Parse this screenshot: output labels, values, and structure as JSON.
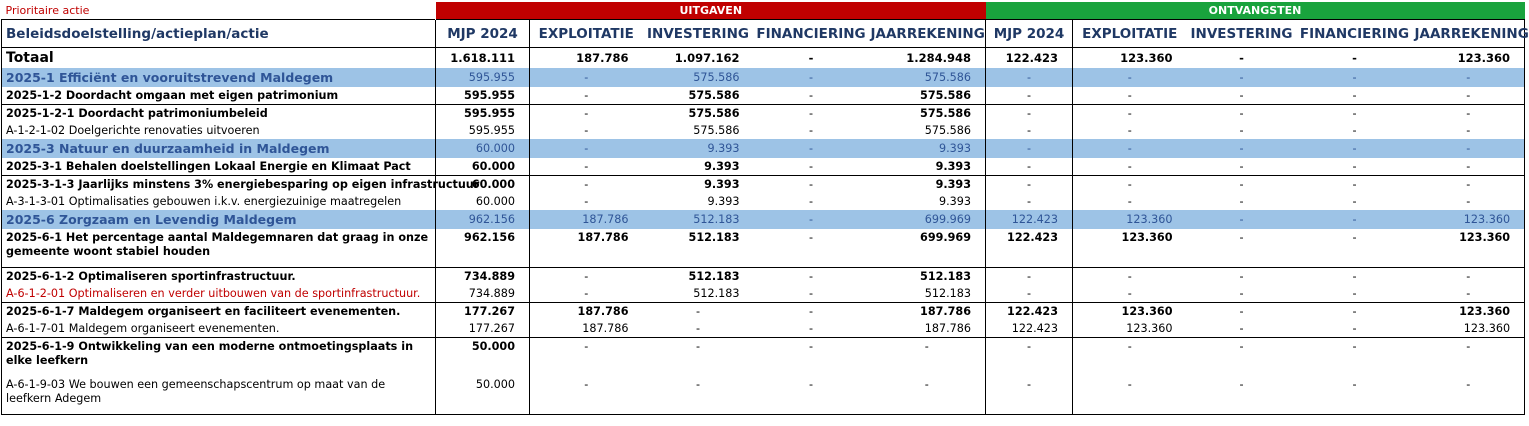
{
  "priority_label": "Prioritaire actie",
  "groups": {
    "uitgaven": "UITGAVEN",
    "ontvangsten": "ONTVANGSTEN"
  },
  "columns": {
    "label": "Beleidsdoelstelling/actieplan/actie",
    "u": [
      "MJP 2024",
      "EXPLOITATIE",
      "INVESTERING",
      "FINANCIERING",
      "JAARREKENING"
    ],
    "o": [
      "MJP 2024",
      "EXPLOITATIE",
      "INVESTERING",
      "FINANCIERING",
      "JAARREKENING"
    ]
  },
  "rows": [
    {
      "label": "Totaal",
      "v": [
        "1.618.111",
        "187.786",
        "1.097.162",
        "-",
        "1.284.948",
        "122.423",
        "123.360",
        "-",
        "-",
        "123.360"
      ]
    },
    {
      "label": "2025-1 Efficiënt en vooruitstrevend Maldegem",
      "v": [
        "595.955",
        "-",
        "575.586",
        "-",
        "575.586",
        "-",
        "-",
        "-",
        "-",
        "-"
      ]
    },
    {
      "label": "2025-1-2 Doordacht omgaan met eigen patrimonium",
      "v": [
        "595.955",
        "-",
        "575.586",
        "-",
        "575.586",
        "-",
        "-",
        "-",
        "-",
        "-"
      ]
    },
    {
      "label": "2025-1-2-1  Doordacht patrimoniumbeleid",
      "v": [
        "595.955",
        "-",
        "575.586",
        "-",
        "575.586",
        "-",
        "-",
        "-",
        "-",
        "-"
      ]
    },
    {
      "label": "A-1-2-1-02 Doelgerichte renovaties uitvoeren",
      "v": [
        "595.955",
        "-",
        "575.586",
        "-",
        "575.586",
        "-",
        "-",
        "-",
        "-",
        "-"
      ]
    },
    {
      "label": "2025-3 Natuur en duurzaamheid in Maldegem",
      "v": [
        "60.000",
        "-",
        "9.393",
        "-",
        "9.393",
        "-",
        "-",
        "-",
        "-",
        "-"
      ]
    },
    {
      "label": "2025-3-1 Behalen doelstellingen Lokaal Energie en Klimaat Pact",
      "v": [
        "60.000",
        "-",
        "9.393",
        "-",
        "9.393",
        "-",
        "-",
        "-",
        "-",
        "-"
      ]
    },
    {
      "label": "2025-3-1-3 Jaarlijks minstens 3% energiebesparing op eigen infrastructuur",
      "v": [
        "60.000",
        "-",
        "9.393",
        "-",
        "9.393",
        "-",
        "-",
        "-",
        "-",
        "-"
      ]
    },
    {
      "label": "A-3-1-3-01 Optimalisaties gebouwen i.k.v. energiezuinige maatregelen",
      "v": [
        "60.000",
        "-",
        "9.393",
        "-",
        "9.393",
        "-",
        "-",
        "-",
        "-",
        "-"
      ]
    },
    {
      "label": "2025-6 Zorgzaam en Levendig Maldegem",
      "v": [
        "962.156",
        "187.786",
        "512.183",
        "-",
        "699.969",
        "122.423",
        "123.360",
        "-",
        "-",
        "123.360"
      ]
    },
    {
      "label": "2025-6-1 Het percentage aantal Maldegemnaren dat graag in onze gemeente woont stabiel houden",
      "v": [
        "962.156",
        "187.786",
        "512.183",
        "-",
        "699.969",
        "122.423",
        "123.360",
        "-",
        "-",
        "123.360"
      ]
    },
    {
      "label": "2025-6-1-2 Optimaliseren sportinfrastructuur.",
      "v": [
        "734.889",
        "-",
        "512.183",
        "-",
        "512.183",
        "-",
        "-",
        "-",
        "-",
        "-"
      ]
    },
    {
      "label": "A-6-1-2-01 Optimaliseren en verder uitbouwen van de sportinfrastructuur.",
      "v": [
        "734.889",
        "-",
        "512.183",
        "-",
        "512.183",
        "-",
        "-",
        "-",
        "-",
        "-"
      ]
    },
    {
      "label": "2025-6-1-7 Maldegem organiseert en faciliteert evenementen.",
      "v": [
        "177.267",
        "187.786",
        "-",
        "-",
        "187.786",
        "122.423",
        "123.360",
        "-",
        "-",
        "123.360"
      ]
    },
    {
      "label": "A-6-1-7-01 Maldegem organiseert evenementen.",
      "v": [
        "177.267",
        "187.786",
        "-",
        "-",
        "187.786",
        "122.423",
        "123.360",
        "-",
        "-",
        "123.360"
      ]
    },
    {
      "label": "2025-6-1-9 Ontwikkeling van een moderne ontmoetingsplaats in elke leefkern",
      "v": [
        "50.000",
        "-",
        "-",
        "-",
        "-",
        "-",
        "-",
        "-",
        "-",
        "-"
      ]
    },
    {
      "label": "A-6-1-9-03 We bouwen een gemeenschapscentrum op maat van de leefkern Adegem",
      "v": [
        "50.000",
        "-",
        "-",
        "-",
        "-",
        "-",
        "-",
        "-",
        "-",
        "-"
      ]
    }
  ],
  "colors": {
    "uitgaven": "#c00000",
    "ontvangsten": "#19a33d",
    "goal_row": "#9dc3e6",
    "header_text": "#1f3864",
    "priority": "#c00000"
  }
}
